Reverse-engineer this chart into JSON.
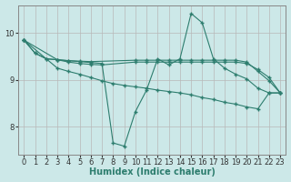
{
  "xlabel": "Humidex (Indice chaleur)",
  "ylabel": "",
  "bg_color": "#cce8e8",
  "plot_bg_color": "#cce8e8",
  "grid_color": "#b8b8b8",
  "line_color": "#2d7d6e",
  "xlim": [
    -0.5,
    23.5
  ],
  "ylim": [
    7.4,
    10.6
  ],
  "yticks": [
    8,
    9,
    10
  ],
  "xticks": [
    0,
    1,
    2,
    3,
    4,
    5,
    6,
    7,
    8,
    9,
    10,
    11,
    12,
    13,
    14,
    15,
    16,
    17,
    18,
    19,
    20,
    21,
    22,
    23
  ],
  "lines": [
    {
      "x": [
        0,
        1,
        2,
        3,
        4,
        5,
        6,
        7,
        8,
        9,
        10,
        11,
        12,
        13,
        14,
        15,
        16,
        17,
        18,
        19,
        20,
        21,
        22,
        23
      ],
      "y": [
        9.85,
        9.57,
        9.45,
        9.43,
        9.41,
        9.39,
        9.37,
        9.35,
        7.65,
        7.58,
        8.32,
        8.78,
        9.45,
        9.32,
        9.45,
        10.42,
        10.22,
        9.45,
        9.25,
        9.12,
        9.02,
        8.82,
        8.72,
        8.72
      ]
    },
    {
      "x": [
        0,
        1,
        2,
        3,
        4,
        5,
        6,
        7,
        10,
        11,
        12,
        13,
        14,
        15,
        16,
        17,
        18,
        19,
        20,
        21,
        22,
        23
      ],
      "y": [
        9.85,
        9.57,
        9.45,
        9.43,
        9.38,
        9.35,
        9.33,
        9.32,
        9.38,
        9.38,
        9.38,
        9.38,
        9.38,
        9.38,
        9.38,
        9.38,
        9.38,
        9.38,
        9.35,
        9.22,
        9.05,
        8.72
      ]
    },
    {
      "x": [
        0,
        3,
        4,
        5,
        6,
        10,
        11,
        12,
        13,
        14,
        15,
        16,
        17,
        18,
        19,
        20,
        21,
        22,
        23
      ],
      "y": [
        9.85,
        9.43,
        9.41,
        9.4,
        9.39,
        9.42,
        9.42,
        9.42,
        9.42,
        9.42,
        9.42,
        9.42,
        9.42,
        9.42,
        9.42,
        9.38,
        9.18,
        8.98,
        8.72
      ]
    },
    {
      "x": [
        0,
        3,
        4,
        5,
        6,
        7,
        8,
        9,
        10,
        11,
        12,
        13,
        14,
        15,
        16,
        17,
        18,
        19,
        20,
        21,
        22,
        23
      ],
      "y": [
        9.85,
        9.25,
        9.18,
        9.12,
        9.05,
        8.98,
        8.92,
        8.88,
        8.85,
        8.82,
        8.78,
        8.75,
        8.72,
        8.68,
        8.62,
        8.58,
        8.52,
        8.48,
        8.42,
        8.38,
        8.72,
        8.72
      ]
    }
  ]
}
